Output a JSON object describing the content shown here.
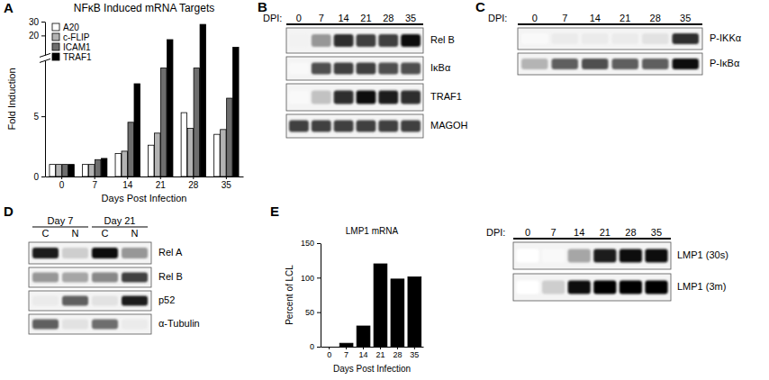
{
  "chart_data": [
    {
      "panel": "A",
      "type": "bar",
      "title": "NFκB Induced mRNA Targets",
      "x_label": "Days Post Infection",
      "y_label": "Fold Induction",
      "categories": [
        "0",
        "7",
        "14",
        "21",
        "28",
        "35"
      ],
      "series": [
        {
          "name": "A20",
          "color": "#ffffff",
          "values": [
            1,
            1,
            1.9,
            2.6,
            5.3,
            3.5
          ]
        },
        {
          "name": "c-FLIP",
          "color": "#b3b3b3",
          "values": [
            1,
            1,
            2.1,
            3.6,
            4.0,
            3.9
          ]
        },
        {
          "name": "ICAM1",
          "color": "#6e6e6e",
          "values": [
            1,
            1.4,
            4.5,
            9,
            9,
            6.5
          ]
        },
        {
          "name": "TRAF1",
          "color": "#000000",
          "values": [
            1,
            1.5,
            7.7,
            17,
            28,
            11.5
          ]
        }
      ],
      "ylim": [
        0,
        30
      ],
      "ybreak": [
        9,
        11
      ],
      "yticks": [
        0,
        5,
        20,
        30
      ],
      "legend": "top-left"
    },
    {
      "panel": "E",
      "type": "bar",
      "title": "LMP1 mRNA",
      "x_label": "Days Post Infection",
      "y_label": "Percent of LCL",
      "categories": [
        "0",
        "7",
        "14",
        "21",
        "28",
        "35"
      ],
      "values": [
        0,
        5,
        30,
        120,
        98,
        101
      ],
      "color": "#000000",
      "ylim": [
        0,
        150
      ],
      "yticks": [
        0,
        50,
        100,
        150
      ]
    }
  ],
  "blots": [
    {
      "panel": "B",
      "lane_header": "DPI:",
      "lanes": [
        "0",
        "7",
        "14",
        "21",
        "28",
        "35"
      ],
      "rows": [
        {
          "label": "Rel B",
          "intensity": [
            0.1,
            0.5,
            0.85,
            0.8,
            0.8,
            0.95
          ]
        },
        {
          "label": "IκBα",
          "intensity": [
            0.05,
            0.75,
            0.8,
            0.8,
            0.75,
            0.75
          ]
        },
        {
          "label": "TRAF1",
          "intensity": [
            0.05,
            0.35,
            0.85,
            0.95,
            0.9,
            0.85
          ]
        },
        {
          "label": "MAGOH",
          "intensity": [
            0.8,
            0.8,
            0.8,
            0.8,
            0.8,
            0.8
          ]
        }
      ]
    },
    {
      "panel": "C",
      "lane_header": "DPI:",
      "lanes": [
        "0",
        "7",
        "14",
        "21",
        "28",
        "35"
      ],
      "rows": [
        {
          "label": "P-IKKα",
          "intensity": [
            0.05,
            0.15,
            0.15,
            0.15,
            0.2,
            0.85
          ]
        },
        {
          "label": "P-IκBα",
          "intensity": [
            0.4,
            0.7,
            0.75,
            0.7,
            0.7,
            0.95
          ]
        }
      ]
    },
    {
      "panel": "D",
      "groups": [
        {
          "label": "Day 7",
          "lanes": [
            "C",
            "N"
          ]
        },
        {
          "label": "Day 21",
          "lanes": [
            "C",
            "N"
          ]
        }
      ],
      "rows": [
        {
          "label": "Rel A",
          "intensity": [
            0.9,
            0.3,
            0.95,
            0.5
          ]
        },
        {
          "label": "Rel B",
          "intensity": [
            0.5,
            0.45,
            0.55,
            0.8
          ]
        },
        {
          "label": "p52",
          "intensity": [
            0.15,
            0.7,
            0.2,
            0.9
          ]
        },
        {
          "label": "α-Tubulin",
          "intensity": [
            0.7,
            0.2,
            0.65,
            0.15
          ]
        }
      ]
    },
    {
      "lane_header": "DPI:",
      "lanes": [
        "0",
        "7",
        "14",
        "21",
        "28",
        "35"
      ],
      "rows": [
        {
          "label": "LMP1 (30s)",
          "intensity": [
            0,
            0.05,
            0.45,
            0.9,
            0.95,
            0.95
          ]
        },
        {
          "label": "LMP1 (3m)",
          "intensity": [
            0,
            0.3,
            0.95,
            1,
            1,
            1
          ]
        }
      ]
    }
  ]
}
